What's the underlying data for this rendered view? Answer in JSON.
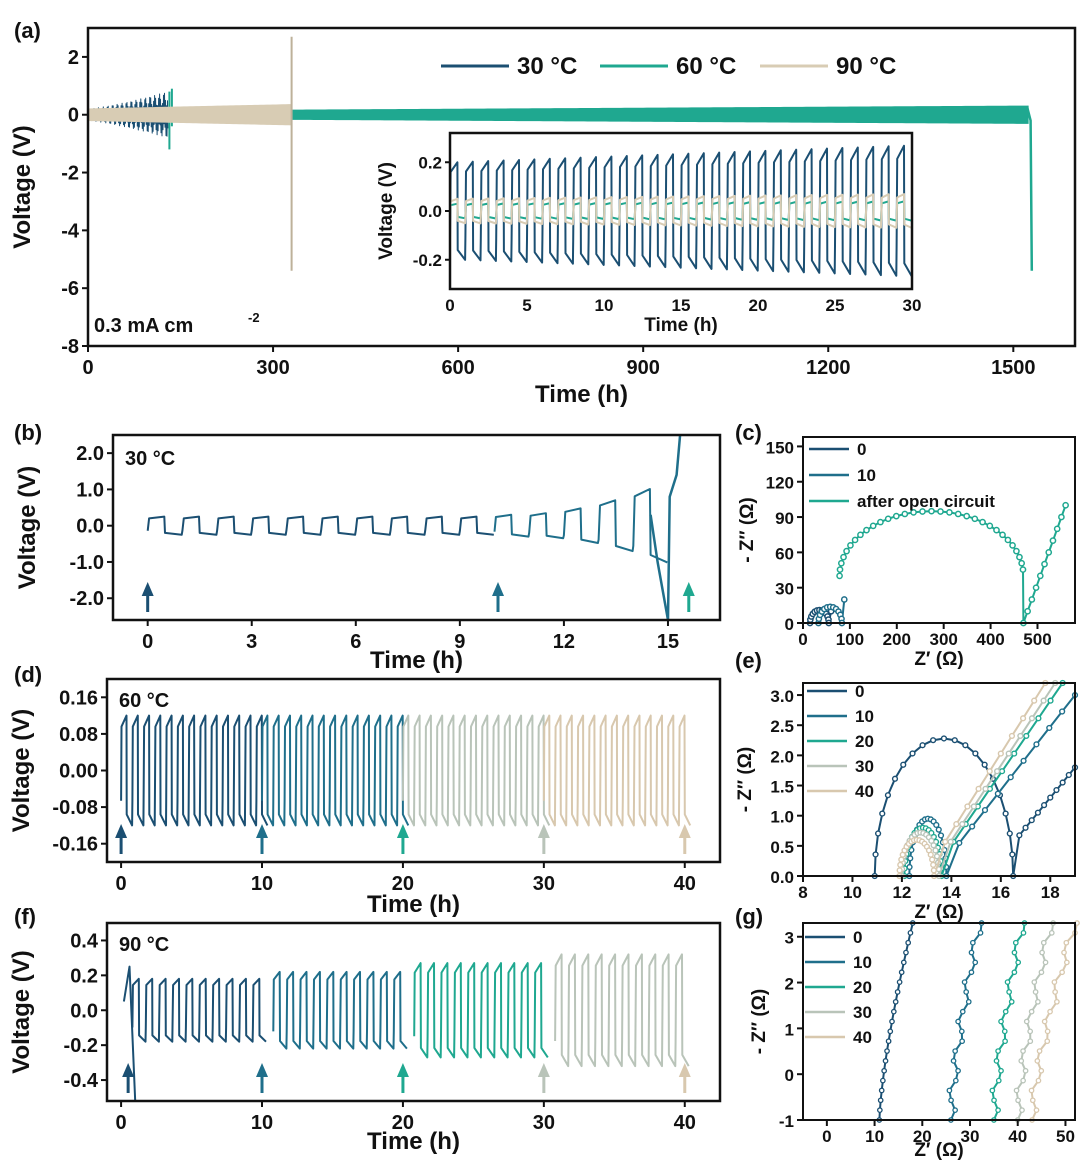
{
  "colors": {
    "c0": "#1b4f72",
    "c10": "#1f6f8b",
    "c20": "#1fa890",
    "c30": "#b9c4b9",
    "c40": "#d8c8ae",
    "c90": "#d8ccb4",
    "arrow0": "#1b4f72",
    "arrow10": "#1f6f8b",
    "arrow20": "#1fa890",
    "arrow30": "#b9c4b9",
    "arrow40": "#d8c8ae"
  },
  "chart_data": [
    {
      "id": "a",
      "panel_label": "(a)",
      "type": "line",
      "xlabel": "Time (h)",
      "ylabel": "Voltage (V)",
      "xlim": [
        0,
        1600
      ],
      "ylim": [
        -8,
        3
      ],
      "xticks": [
        "0",
        "300",
        "600",
        "900",
        "1200",
        "1500"
      ],
      "xtick_values": [
        0,
        300,
        600,
        900,
        1200,
        1500
      ],
      "yticks": [
        "2",
        "0",
        "-2",
        "-4",
        "-6",
        "-8"
      ],
      "ytick_values": [
        2,
        0,
        -2,
        -4,
        -6,
        -8
      ],
      "annotation": "0.3 mA cm",
      "annotation_sup": "-2",
      "legend": [
        "30 °C",
        "60 °C",
        "90 °C"
      ],
      "series": [
        {
          "name": "30 °C",
          "end_h": 130,
          "amp_start": 0.2,
          "amp_end": 0.8,
          "fail_v": -1.2
        },
        {
          "name": "60 °C",
          "end_h": 1530,
          "amp_start": 0.12,
          "amp_end": 0.3,
          "fail_v": -5.4
        },
        {
          "name": "90 °C",
          "end_h": 330,
          "amp_start": 0.2,
          "amp_end": 0.35,
          "fail_v": -5.4,
          "spike_v": 2.7
        }
      ],
      "inset": {
        "xlabel": "Time (h)",
        "ylabel": "Voltage (V)",
        "xlim": [
          0,
          30
        ],
        "ylim": [
          -0.32,
          0.32
        ],
        "xticks": [
          "0",
          "5",
          "10",
          "15",
          "20",
          "25",
          "30"
        ],
        "xtick_values": [
          0,
          5,
          10,
          15,
          20,
          25,
          30
        ],
        "yticks": [
          "0.2",
          "0.0",
          "-0.2"
        ],
        "ytick_values": [
          0.2,
          0,
          -0.2
        ],
        "series": [
          {
            "name": "30 °C",
            "amp_start": 0.2,
            "amp_end": 0.27
          },
          {
            "name": "60 °C",
            "amp_start": 0.03,
            "amp_end": 0.04
          },
          {
            "name": "90 °C",
            "amp_start": 0.05,
            "amp_end": 0.07
          }
        ]
      }
    },
    {
      "id": "b",
      "panel_label": "(b)",
      "type": "line",
      "title": "30 °C",
      "xlabel": "Time (h)",
      "ylabel": "Voltage (V)",
      "xlim": [
        -1,
        16.5
      ],
      "ylim": [
        -2.6,
        2.5
      ],
      "xticks": [
        "0",
        "3",
        "6",
        "9",
        "12",
        "15"
      ],
      "xtick_values": [
        0,
        3,
        6,
        9,
        12,
        15
      ],
      "yticks": [
        "2.0",
        "1.0",
        "0.0",
        "-1.0",
        "-2.0"
      ],
      "ytick_values": [
        2,
        1,
        0,
        -1,
        -2
      ],
      "arrows_h": [
        0,
        10.1,
        15.6
      ],
      "segments": [
        {
          "t0": 0,
          "t1": 10,
          "amp": 0.25
        },
        {
          "t0": 10,
          "t1": 15.3,
          "amp_start": 0.3,
          "amp_end": 1.2
        }
      ]
    },
    {
      "id": "c",
      "panel_label": "(c)",
      "type": "scatter",
      "xlabel": "Z′ (Ω)",
      "ylabel": "- Z″ (Ω)",
      "xlim": [
        0,
        580
      ],
      "ylim": [
        0,
        158
      ],
      "xticks": [
        "0",
        "100",
        "200",
        "300",
        "400",
        "500"
      ],
      "xtick_values": [
        0,
        100,
        200,
        300,
        400,
        500
      ],
      "yticks": [
        "0",
        "30",
        "60",
        "90",
        "120",
        "150"
      ],
      "ytick_values": [
        0,
        30,
        60,
        90,
        120,
        150
      ],
      "legend": [
        "0",
        "10",
        "after open circuit"
      ],
      "series": [
        {
          "name": "0",
          "center": 35,
          "radius": 20,
          "tail_to": [
            60,
            10
          ]
        },
        {
          "name": "10",
          "center": 58,
          "radius": 25,
          "tail_to": [
            88,
            20
          ]
        },
        {
          "name": "after open circuit",
          "arc_start": 78,
          "arc_end": 470,
          "peak": 95,
          "tail_to": [
            560,
            100
          ]
        }
      ]
    },
    {
      "id": "d",
      "panel_label": "(d)",
      "type": "line",
      "title": "60 °C",
      "xlabel": "Time (h)",
      "ylabel": "Voltage (V)",
      "xlim": [
        -1,
        42.5
      ],
      "ylim": [
        -0.2,
        0.2
      ],
      "xticks": [
        "0",
        "10",
        "20",
        "30",
        "40"
      ],
      "xtick_values": [
        0,
        10,
        20,
        30,
        40
      ],
      "yticks": [
        "0.16",
        "0.08",
        "0.00",
        "-0.08",
        "-0.16"
      ],
      "ytick_values": [
        0.16,
        0.08,
        0,
        -0.08,
        -0.16
      ],
      "arrows_h": [
        0,
        10,
        20,
        30,
        40
      ],
      "segments": [
        {
          "t0": 0,
          "t1": 10,
          "amp": 0.12
        },
        {
          "t0": 10,
          "t1": 20,
          "amp": 0.12
        },
        {
          "t0": 20,
          "t1": 30,
          "amp": 0.12
        },
        {
          "t0": 30,
          "t1": 40,
          "amp": 0.12
        }
      ]
    },
    {
      "id": "e",
      "panel_label": "(e)",
      "type": "scatter",
      "xlabel": "Z′ (Ω)",
      "ylabel": "- Z″ (Ω)",
      "xlim": [
        8,
        19
      ],
      "ylim": [
        0,
        3.2
      ],
      "xticks": [
        "8",
        "10",
        "12",
        "14",
        "16",
        "18"
      ],
      "xtick_values": [
        8,
        10,
        12,
        14,
        16,
        18
      ],
      "yticks": [
        "0.0",
        "0.5",
        "1.0",
        "1.5",
        "2.0",
        "2.5",
        "3.0"
      ],
      "ytick_values": [
        0,
        0.5,
        1,
        1.5,
        2,
        2.5,
        3
      ],
      "legend": [
        "0",
        "10",
        "20",
        "30",
        "40"
      ],
      "series": [
        {
          "name": "0",
          "arc_start": 10.9,
          "arc_end": 16.5,
          "peak": 2.28,
          "tail_to": [
            19,
            1.8
          ]
        },
        {
          "name": "10",
          "arc_start": 12.3,
          "arc_end": 13.8,
          "peak": 0.95,
          "tail_to": [
            19,
            3.0
          ]
        },
        {
          "name": "20",
          "arc_start": 12.1,
          "arc_end": 13.6,
          "peak": 0.8,
          "tail_to": [
            18.5,
            3.2
          ]
        },
        {
          "name": "30",
          "arc_start": 12.0,
          "arc_end": 13.5,
          "peak": 0.72,
          "tail_to": [
            18.2,
            3.2
          ]
        },
        {
          "name": "40",
          "arc_start": 11.9,
          "arc_end": 13.3,
          "peak": 0.6,
          "tail_to": [
            17.8,
            3.2
          ]
        }
      ]
    },
    {
      "id": "f",
      "panel_label": "(f)",
      "type": "line",
      "title": "90 °C",
      "xlabel": "Time (h)",
      "ylabel": "Voltage (V)",
      "xlim": [
        -1,
        42.5
      ],
      "ylim": [
        -0.52,
        0.5
      ],
      "xticks": [
        "0",
        "10",
        "20",
        "30",
        "40"
      ],
      "xtick_values": [
        0,
        10,
        20,
        30,
        40
      ],
      "yticks": [
        "0.4",
        "0.2",
        "0.0",
        "-0.2",
        "-0.4"
      ],
      "ytick_values": [
        0.4,
        0.2,
        0,
        -0.2,
        -0.4
      ],
      "arrows_h": [
        0.5,
        10,
        20,
        30,
        40
      ],
      "segments": [
        {
          "t0": 0,
          "t1": 10,
          "amp": 0.18
        },
        {
          "t0": 10,
          "t1": 20,
          "amp": 0.22
        },
        {
          "t0": 20,
          "t1": 30,
          "amp": 0.27
        },
        {
          "t0": 30,
          "t1": 40,
          "amp": 0.32
        }
      ]
    },
    {
      "id": "g",
      "panel_label": "(g)",
      "type": "scatter",
      "xlabel": "Z′ (Ω)",
      "ylabel": "- Z″ (Ω)",
      "xlim": [
        -5,
        52
      ],
      "ylim": [
        -1,
        3.3
      ],
      "xticks": [
        "0",
        "10",
        "20",
        "30",
        "40",
        "50"
      ],
      "xtick_values": [
        0,
        10,
        20,
        30,
        40,
        50
      ],
      "yticks": [
        "-1",
        "0",
        "1",
        "2",
        "3"
      ],
      "ytick_values": [
        -1,
        0,
        1,
        2,
        3
      ],
      "legend": [
        "0",
        "10",
        "20",
        "30",
        "40"
      ],
      "series": [
        {
          "name": "0",
          "x0": 11,
          "x1": 18
        },
        {
          "name": "10",
          "x0": 26,
          "x1": 32
        },
        {
          "name": "20",
          "x0": 35,
          "x1": 41
        },
        {
          "name": "30",
          "x0": 40,
          "x1": 47
        },
        {
          "name": "40",
          "x0": 43,
          "x1": 52
        }
      ]
    }
  ]
}
